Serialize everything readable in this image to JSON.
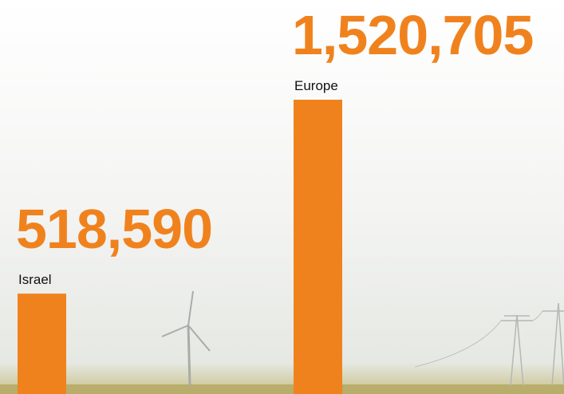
{
  "chart_data": {
    "type": "bar",
    "categories": [
      "Israel",
      "Europe"
    ],
    "values": [
      518590,
      1520705
    ],
    "value_labels": [
      "518,590",
      "1,520,705"
    ],
    "color": "#f0821e"
  }
}
